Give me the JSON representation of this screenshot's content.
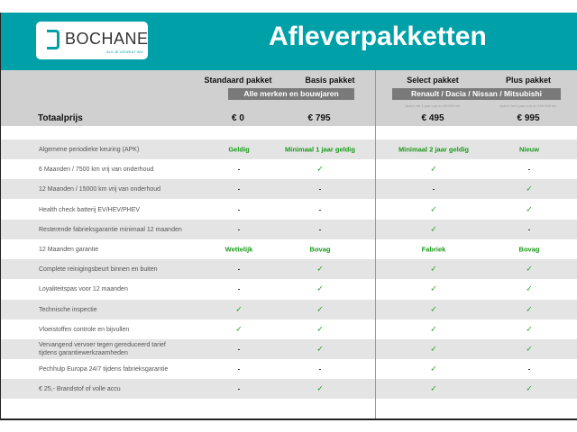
{
  "brand": {
    "name": "BOCHANE",
    "tagline": "ALS JE VOORUIT WIL"
  },
  "title": "Afleverpakketten",
  "colors": {
    "teal": "#00a0a8",
    "green": "#1a9a1a",
    "header_gray": "#d0d0d0"
  },
  "packages": [
    {
      "name": "Standaard pakket",
      "price": "€ 0"
    },
    {
      "name": "Basis pakket",
      "price": "€ 795"
    },
    {
      "name": "Select pakket",
      "price": "€ 495",
      "note": "Auto's tot 1 jaar oud en 20.000 km"
    },
    {
      "name": "Plus pakket",
      "price": "€ 995",
      "note": "Auto's tot 5 jaar oud en 100.000 km"
    }
  ],
  "groups": [
    "Alle merken en bouwjaren",
    "Renault / Dacia / Nissan / Mitsubishi"
  ],
  "total_label": "Totaalprijs",
  "rows": [
    {
      "label": "Algemene periodieke keuring (APK)",
      "values": [
        "Geldig",
        "Minimaal 1 jaar geldig",
        "Minimaal 2 jaar geldig",
        "Nieuw"
      ]
    },
    {
      "label": "6 Maanden / 7500 km vrij van onderhoud",
      "values": [
        "-",
        "✓",
        "✓",
        "-"
      ]
    },
    {
      "label": "12 Maanden / 15000 km vrij van onderhoud",
      "values": [
        "-",
        "-",
        "-",
        "✓"
      ]
    },
    {
      "label": "Health check batterij EV/HEV/PHEV",
      "values": [
        "-",
        "-",
        "✓",
        "✓"
      ]
    },
    {
      "label": "Resterende fabrieksgarantie minimaal 12 maanden",
      "values": [
        "-",
        "-",
        "✓",
        "-"
      ]
    },
    {
      "label": "12 Maanden  garantie",
      "values": [
        "Wettelijk",
        "Bovag",
        "Fabriek",
        "Bovag"
      ]
    },
    {
      "label": "Complete reinigingsbeurt binnen en buiten",
      "values": [
        "-",
        "✓",
        "✓",
        "✓"
      ]
    },
    {
      "label": "Loyaliteitspas voor 12 maanden",
      "values": [
        "-",
        "✓",
        "✓",
        "✓"
      ]
    },
    {
      "label": "Technische inspectie",
      "values": [
        "✓",
        "✓",
        "✓",
        "✓"
      ]
    },
    {
      "label": "Vloeistoffen controle en bijvullen",
      "values": [
        "✓",
        "✓",
        "✓",
        "✓"
      ]
    },
    {
      "label": "Vervangend vervoer tegen gereduceerd tarief tijdens garantiewerkzaamheden",
      "values": [
        "-",
        "✓",
        "✓",
        "✓"
      ]
    },
    {
      "label": "Pechhulp Europa 24/7 tijdens fabrieksgarantie",
      "values": [
        "-",
        "-",
        "✓",
        "-"
      ]
    },
    {
      "label": "€ 25,- Brandstof of  volle accu",
      "values": [
        "-",
        "✓",
        "✓",
        "✓"
      ]
    }
  ]
}
